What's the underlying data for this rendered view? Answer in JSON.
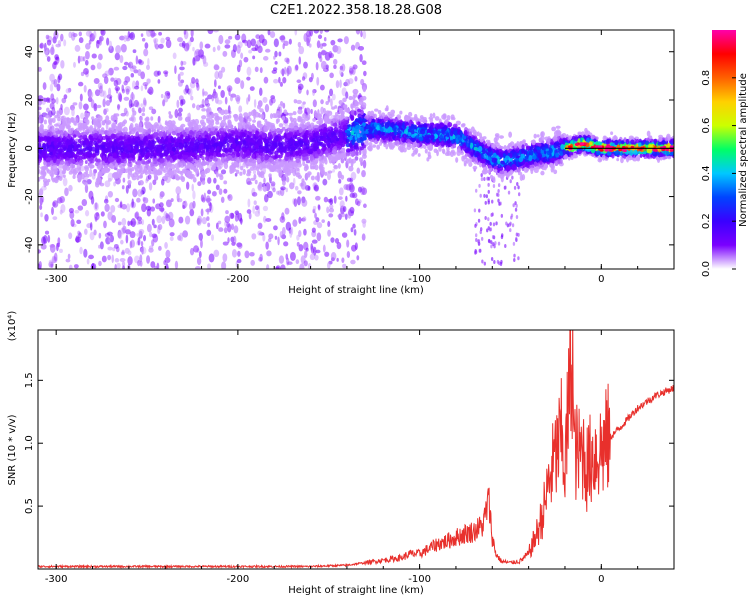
{
  "figure": {
    "title": "C2E1.2022.358.18.28.G08"
  },
  "chart_data": [
    {
      "type": "heatmap",
      "description_of_marks": "spectrogram of frequency vs height; cluster centers traced by a black reference line",
      "xlabel": "Height of straight line (km)",
      "ylabel": "Frequency (Hz)",
      "xlim": [
        -310,
        40
      ],
      "ylim": [
        -50,
        49
      ],
      "xticks": [
        -300,
        -200,
        -100,
        0
      ],
      "yticks": [
        -40,
        -20,
        0,
        20,
        40
      ],
      "grid": false,
      "colorbar": {
        "label": "Normalized spectral amplitude",
        "range": [
          0,
          1
        ],
        "ticks": [
          0.0,
          0.2,
          0.4,
          0.6,
          0.8
        ],
        "tick_labels": [
          "0.0",
          "0.2",
          "0.4",
          "0.6",
          "0.8"
        ],
        "colormap": [
          "#ffffff",
          "#7a00ff",
          "#3a00ff",
          "#0044ff",
          "#00c8ff",
          "#00ff66",
          "#ccff00",
          "#ffd000",
          "#ff6000",
          "#ff0000",
          "#ff00aa"
        ]
      },
      "ridge": {
        "name": "dominant frequency",
        "x": [
          -310,
          -280,
          -250,
          -220,
          -200,
          -180,
          -160,
          -140,
          -130,
          -120,
          -110,
          -100,
          -90,
          -80,
          -75,
          -70,
          -65,
          -60,
          -55,
          -50,
          -45,
          -40,
          -35,
          -30,
          -25,
          -20,
          -15,
          -10,
          -5,
          0,
          10,
          20,
          30,
          40
        ],
        "y": [
          0,
          0,
          0,
          1,
          2,
          1,
          2,
          6,
          8,
          8,
          7,
          6,
          6,
          5,
          3,
          0,
          -2,
          -4,
          -5,
          -5,
          -4,
          -3,
          -2,
          -2,
          -1,
          0,
          1,
          2,
          1,
          0,
          0,
          0,
          0,
          0
        ]
      },
      "noise_cloud": {
        "name": "scattered background energy",
        "x_range": [
          -310,
          -130
        ],
        "y_range": [
          -50,
          49
        ]
      },
      "reference_line": {
        "x_start": -20,
        "x_end": 40,
        "y": 0
      }
    },
    {
      "type": "line",
      "xlabel": "Height of straight line (km)",
      "ylabel": "SNR (10 * v/v)",
      "scale_note": "(x10⁴)",
      "xlim": [
        -310,
        40
      ],
      "ylim": [
        0,
        1.9
      ],
      "xticks": [
        -300,
        -200,
        -100,
        0
      ],
      "yticks": [
        0.5,
        1.0,
        1.5
      ],
      "ytick_labels": [
        "0.5",
        "1.0",
        "1.5"
      ],
      "grid": false,
      "series": [
        {
          "color": "#e8302c",
          "x": [
            -310,
            -280,
            -250,
            -220,
            -200,
            -180,
            -160,
            -140,
            -130,
            -120,
            -110,
            -105,
            -100,
            -95,
            -90,
            -85,
            -80,
            -75,
            -70,
            -65,
            -62,
            -60,
            -58,
            -55,
            -50,
            -45,
            -40,
            -35,
            -32,
            -30,
            -28,
            -25,
            -22,
            -20,
            -18,
            -16,
            -15,
            -12,
            -10,
            -8,
            -5,
            0,
            5,
            10,
            15,
            20,
            25,
            30,
            35,
            40
          ],
          "y": [
            0.02,
            0.02,
            0.02,
            0.02,
            0.02,
            0.02,
            0.02,
            0.03,
            0.05,
            0.07,
            0.09,
            0.12,
            0.12,
            0.16,
            0.2,
            0.22,
            0.25,
            0.28,
            0.3,
            0.35,
            0.55,
            0.25,
            0.12,
            0.06,
            0.05,
            0.06,
            0.12,
            0.3,
            0.45,
            0.6,
            0.75,
            0.9,
            1.05,
            0.8,
            1.3,
            1.85,
            0.95,
            0.9,
            0.95,
            0.8,
            0.9,
            0.95,
            1.05,
            1.12,
            1.2,
            1.28,
            1.33,
            1.38,
            1.41,
            1.44
          ]
        }
      ]
    }
  ]
}
